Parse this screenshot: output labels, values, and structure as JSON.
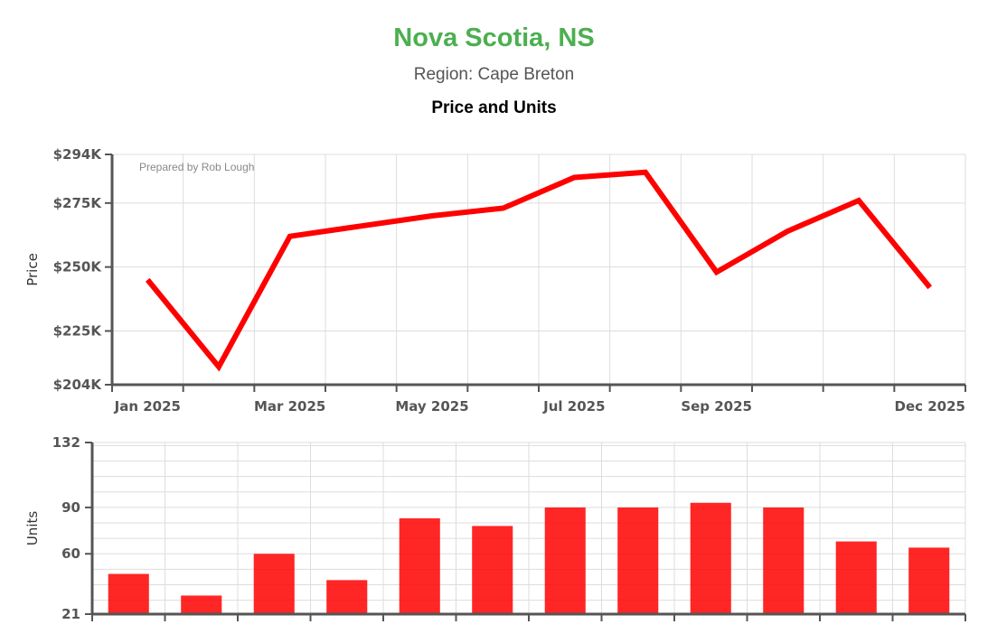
{
  "header": {
    "title": "Nova Scotia, NS",
    "subtitle": "Region: Cape Breton",
    "chart_title": "Price and Units"
  },
  "colors": {
    "title": "#4caf50",
    "series": "#ff0000",
    "grid": "#dddddd",
    "axis": "#555555"
  },
  "chart_data": [
    {
      "type": "line",
      "ylabel": "Price",
      "annotation": "Prepared by Rob Lough",
      "ylim": [
        204000,
        294000
      ],
      "yticks": [
        {
          "value": 204000,
          "label": "$204K"
        },
        {
          "value": 225000,
          "label": "$225K"
        },
        {
          "value": 250000,
          "label": "$250K"
        },
        {
          "value": 275000,
          "label": "$275K"
        },
        {
          "value": 294000,
          "label": "$294K"
        }
      ],
      "x": [
        "2025-01",
        "2025-02",
        "2025-03",
        "2025-04",
        "2025-05",
        "2025-06",
        "2025-07",
        "2025-08",
        "2025-09",
        "2025-10",
        "2025-11",
        "2025-12"
      ],
      "xticklabels": {
        "2025-01": "Jan 2025",
        "2025-03": "Mar 2025",
        "2025-05": "May 2025",
        "2025-07": "Jul 2025",
        "2025-09": "Sep 2025",
        "2025-12": "Dec 2025"
      },
      "values": [
        245000,
        211000,
        262000,
        266000,
        270000,
        273000,
        285000,
        287000,
        248000,
        264000,
        276000,
        242000
      ],
      "grid": true
    },
    {
      "type": "bar",
      "ylabel": "Units",
      "ylim": [
        21,
        132
      ],
      "yticks": [
        {
          "value": 21,
          "label": "21"
        },
        {
          "value": 60,
          "label": "60"
        },
        {
          "value": 90,
          "label": "90"
        },
        {
          "value": 132,
          "label": "132"
        }
      ],
      "categories": [
        "2025-01",
        "2025-02",
        "2025-03",
        "2025-04",
        "2025-05",
        "2025-06",
        "2025-07",
        "2025-08",
        "2025-09",
        "2025-10",
        "2025-11",
        "2025-12"
      ],
      "values": [
        47,
        33,
        60,
        43,
        83,
        78,
        90,
        90,
        93,
        90,
        68,
        64
      ],
      "grid": true
    }
  ]
}
